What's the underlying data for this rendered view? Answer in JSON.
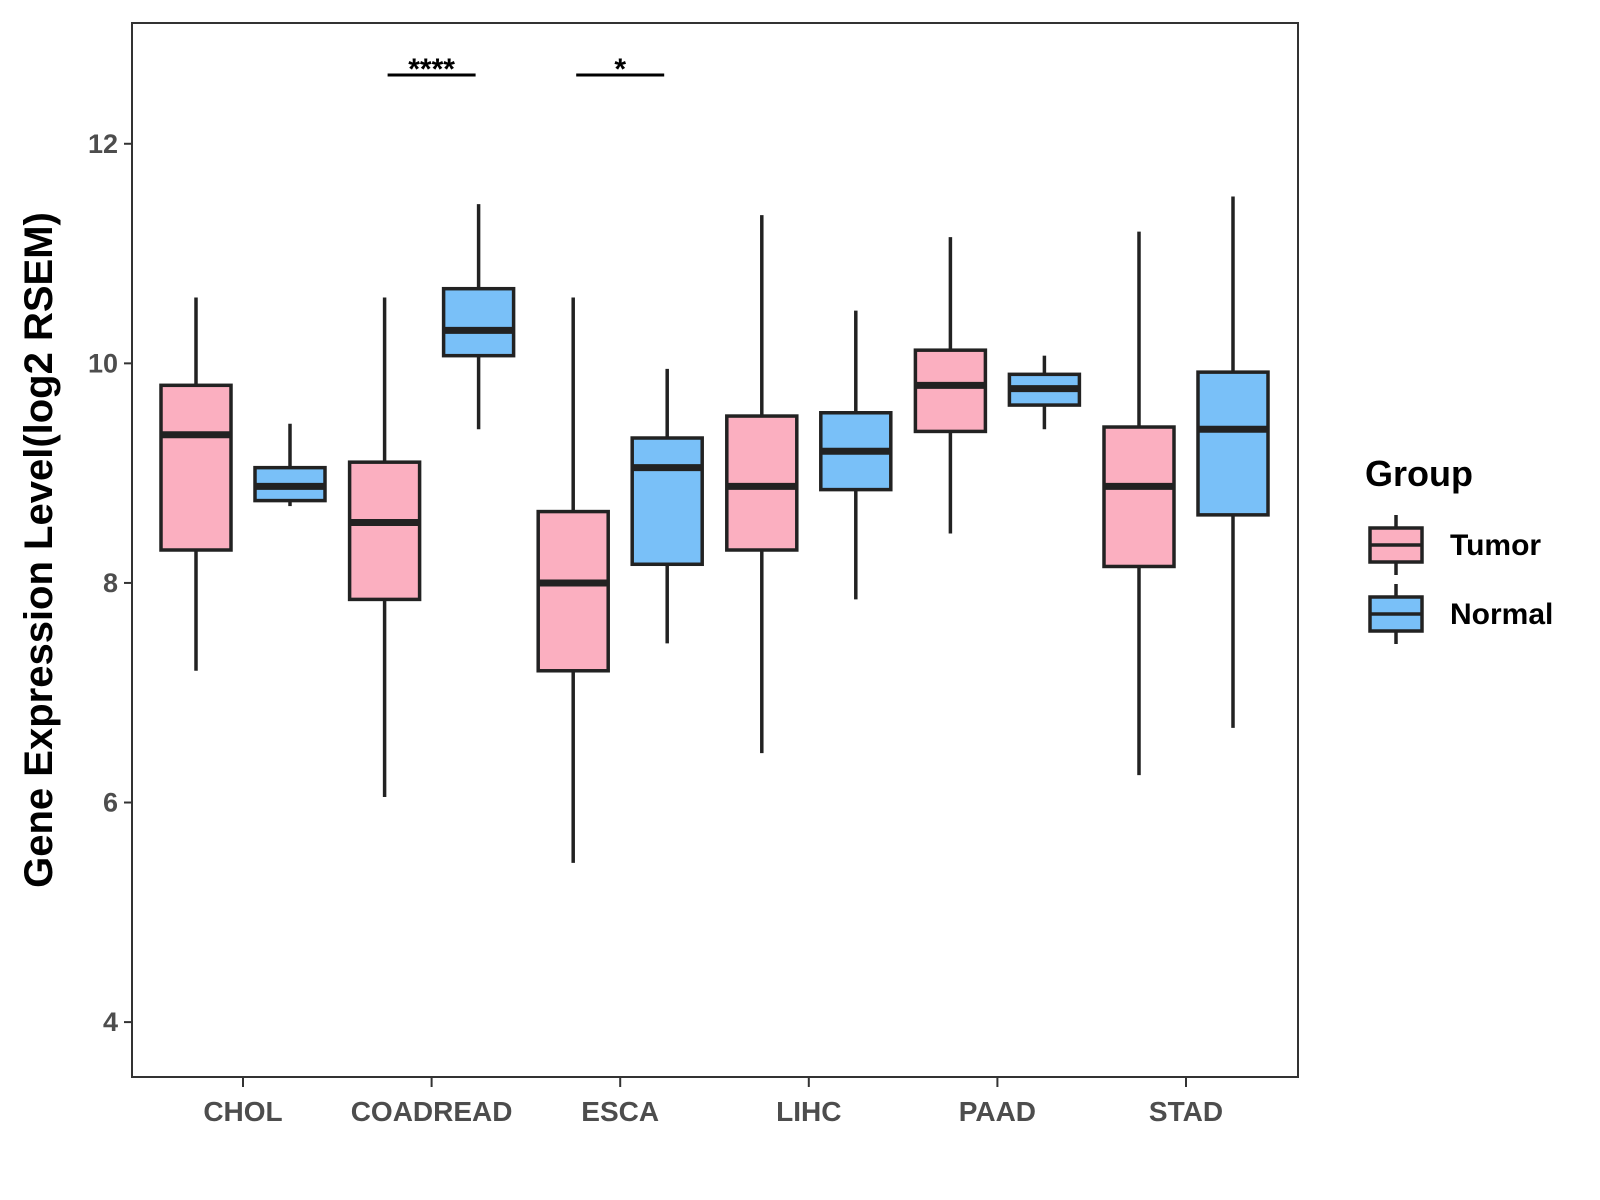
{
  "chart_data": {
    "type": "boxplot",
    "title": "",
    "xlabel": "",
    "ylabel": "Gene Expression Level(log2 RSEM)",
    "ylim": [
      3.5,
      13.1
    ],
    "yticks": [
      4,
      6,
      8,
      10,
      12
    ],
    "grid": false,
    "categories": [
      "CHOL",
      "COADREAD",
      "ESCA",
      "LIHC",
      "PAAD",
      "STAD"
    ],
    "legend": {
      "title": "Group",
      "position": "right",
      "entries": [
        {
          "name": "Tumor",
          "color": "#FBAFC0"
        },
        {
          "name": "Normal",
          "color": "#79C0F8"
        }
      ]
    },
    "series": [
      {
        "name": "Tumor",
        "color": "#FBAFC0",
        "boxes": [
          {
            "category": "CHOL",
            "whisker_low": 7.2,
            "q1": 8.3,
            "median": 9.35,
            "q3": 9.8,
            "whisker_high": 10.6
          },
          {
            "category": "COADREAD",
            "whisker_low": 6.05,
            "q1": 7.85,
            "median": 8.55,
            "q3": 9.1,
            "whisker_high": 10.6
          },
          {
            "category": "ESCA",
            "whisker_low": 5.45,
            "q1": 7.2,
            "median": 8.0,
            "q3": 8.65,
            "whisker_high": 10.6
          },
          {
            "category": "LIHC",
            "whisker_low": 6.45,
            "q1": 8.3,
            "median": 8.88,
            "q3": 9.52,
            "whisker_high": 11.35
          },
          {
            "category": "PAAD",
            "whisker_low": 8.45,
            "q1": 9.38,
            "median": 9.8,
            "q3": 10.12,
            "whisker_high": 11.15
          },
          {
            "category": "STAD",
            "whisker_low": 6.25,
            "q1": 8.15,
            "median": 8.88,
            "q3": 9.42,
            "whisker_high": 11.2
          }
        ]
      },
      {
        "name": "Normal",
        "color": "#79C0F8",
        "boxes": [
          {
            "category": "CHOL",
            "whisker_low": 8.7,
            "q1": 8.75,
            "median": 8.88,
            "q3": 9.05,
            "whisker_high": 9.45
          },
          {
            "category": "COADREAD",
            "whisker_low": 9.4,
            "q1": 10.07,
            "median": 10.3,
            "q3": 10.68,
            "whisker_high": 11.45
          },
          {
            "category": "ESCA",
            "whisker_low": 7.45,
            "q1": 8.17,
            "median": 9.05,
            "q3": 9.32,
            "whisker_high": 9.95
          },
          {
            "category": "LIHC",
            "whisker_low": 7.85,
            "q1": 8.85,
            "median": 9.2,
            "q3": 9.55,
            "whisker_high": 10.48
          },
          {
            "category": "PAAD",
            "whisker_low": 9.4,
            "q1": 9.62,
            "median": 9.77,
            "q3": 9.9,
            "whisker_high": 10.07
          },
          {
            "category": "STAD",
            "whisker_low": 6.68,
            "q1": 8.62,
            "median": 9.4,
            "q3": 9.92,
            "whisker_high": 11.52
          }
        ]
      }
    ],
    "annotations": [
      {
        "category": "COADREAD",
        "label": "****"
      },
      {
        "category": "ESCA",
        "label": "*"
      }
    ]
  }
}
